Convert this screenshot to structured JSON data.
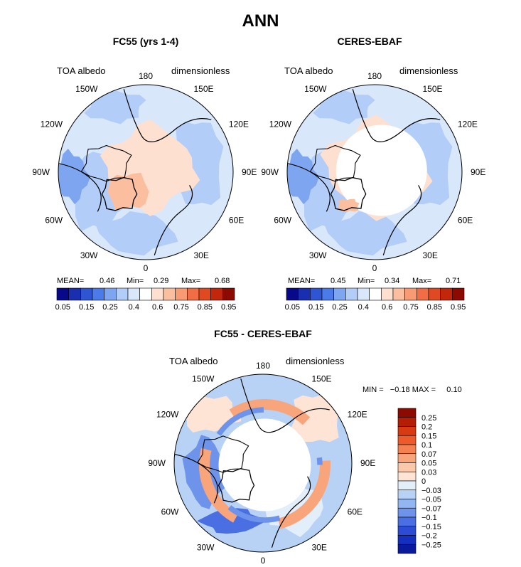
{
  "title": "ANN",
  "panels": [
    {
      "id": "fc55",
      "title": "FC55 (yrs 1-4)",
      "left_label": "TOA albedo",
      "right_label": "dimensionless",
      "stats": {
        "mean_label": "MEAN=",
        "mean": "0.46",
        "min_label": "Min=",
        "min": "0.29",
        "max_label": "Max=",
        "max": "0.68"
      }
    },
    {
      "id": "ceres",
      "title": "CERES-EBAF",
      "left_label": "TOA albedo",
      "right_label": "dimensionless",
      "stats": {
        "mean_label": "MEAN=",
        "mean": "0.45",
        "min_label": "Min=",
        "min": "0.34",
        "max_label": "Max=",
        "max": "0.71"
      }
    },
    {
      "id": "diff",
      "title": "FC55 - CERES-EBAF",
      "left_label": "TOA albedo",
      "right_label": "dimensionless",
      "stats": {
        "text": "MIN =   −0.18 MAX =     0.10"
      }
    }
  ],
  "longitude_labels": [
    "180",
    "150E",
    "120E",
    "90E",
    "60E",
    "30E",
    "0",
    "30W",
    "60W",
    "90W",
    "120W",
    "150W"
  ],
  "colorbar_top": {
    "colors": [
      "#08088a",
      "#1a2fb0",
      "#2e56d2",
      "#4b7be8",
      "#7ea6f0",
      "#b2cdf8",
      "#d9e7fb",
      "#ffffff",
      "#fde0cf",
      "#fbbfa0",
      "#f89a72",
      "#f06d45",
      "#e04a22",
      "#c2270c",
      "#8c0a00"
    ],
    "tick_labels": [
      "0.05",
      "0.15",
      "0.25",
      "0.4",
      "0.6",
      "0.75",
      "0.85",
      "0.95"
    ]
  },
  "colorbar_diff": {
    "colors": [
      "#8c0a00",
      "#b51e05",
      "#d83b13",
      "#ef5a2a",
      "#f4814f",
      "#f8a57c",
      "#fbc8ab",
      "#fde4d4",
      "#e3eefb",
      "#b8d2f6",
      "#93b6f1",
      "#6d94ea",
      "#4a6fe3",
      "#2d4cd6",
      "#1530c0",
      "#0a1a9c"
    ],
    "tick_labels": [
      "0.25",
      "0.2",
      "0.15",
      "0.1",
      "0.07",
      "0.05",
      "0.03",
      "0",
      "−0.03",
      "−0.05",
      "−0.07",
      "−0.1",
      "−0.15",
      "−0.2",
      "−0.25"
    ]
  }
}
